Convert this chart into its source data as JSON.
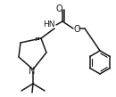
{
  "bg_color": "#ffffff",
  "line_color": "#1a1a1a",
  "lw": 1.1,
  "figsize": [
    1.3,
    1.09
  ],
  "dpi": 100,
  "xlim": [
    0,
    130
  ],
  "ylim": [
    0,
    109
  ]
}
